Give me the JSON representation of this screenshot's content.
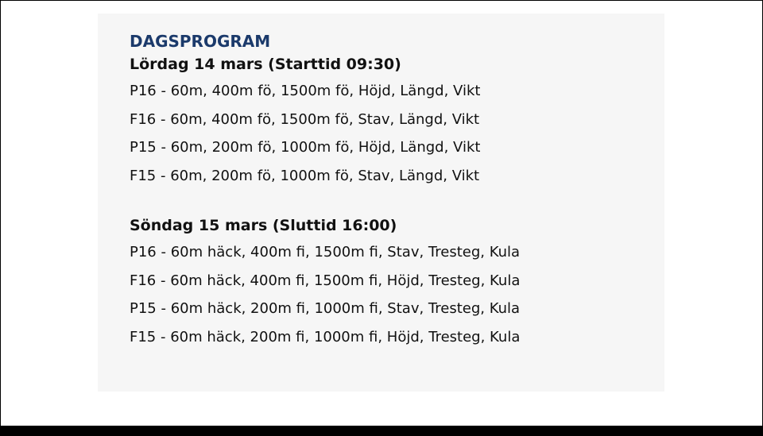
{
  "title": "DAGSPROGRAM",
  "days": [
    {
      "heading": "Lördag 14 mars (Starttid 09:30)",
      "lines": [
        "P16 - 60m, 400m fö, 1500m fö, Höjd, Längd, Vikt",
        "F16 - 60m, 400m fö, 1500m fö, Stav, Längd, Vikt",
        "P15 - 60m, 200m fö, 1000m fö, Höjd, Längd, Vikt",
        "F15 - 60m, 200m fö, 1000m fö, Stav, Längd, Vikt"
      ]
    },
    {
      "heading": "Söndag 15 mars (Sluttid 16:00)",
      "lines": [
        "P16 - 60m häck, 400m fi, 1500m fi, Stav, Tresteg, Kula",
        "F16 - 60m häck, 400m fi, 1500m fi, Höjd, Tresteg, Kula",
        "P15 - 60m häck, 200m fi, 1000m fi, Stav, Tresteg, Kula",
        "F15 - 60m häck, 200m fi, 1000m fi, Höjd, Tresteg, Kula"
      ]
    }
  ]
}
